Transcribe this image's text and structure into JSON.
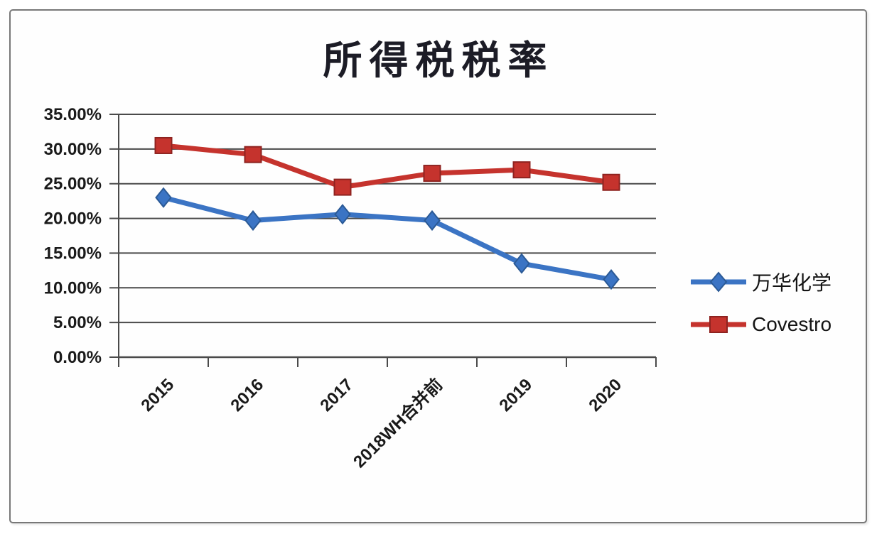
{
  "page": {
    "background": "#ffffff",
    "card_border_color": "#787878"
  },
  "chart_data": {
    "type": "line",
    "title": "所得税税率",
    "categories": [
      "2015",
      "2016",
      "2017",
      "2018WH合并前",
      "2019",
      "2020"
    ],
    "series": [
      {
        "name": "万华化学",
        "color": "#3B74C4",
        "marker": "diamond",
        "marker_outline": "#2B5A96",
        "values": [
          23.0,
          19.7,
          20.6,
          19.7,
          13.5,
          11.2
        ]
      },
      {
        "name": "Covestro",
        "color": "#C5332D",
        "marker": "square",
        "marker_outline": "#8E2320",
        "values": [
          30.5,
          29.2,
          24.5,
          26.5,
          27.0,
          25.2
        ]
      }
    ],
    "unit": "%",
    "ylim": [
      0,
      35
    ],
    "ytick_step": 5,
    "ytick_labels": [
      "0.00%",
      "5.00%",
      "10.00%",
      "15.00%",
      "20.00%",
      "25.00%",
      "30.00%",
      "35.00%"
    ],
    "grid": true,
    "legend_position": "right",
    "axis_color": "#4A4A4A",
    "label_color": "#1A1A1A"
  }
}
